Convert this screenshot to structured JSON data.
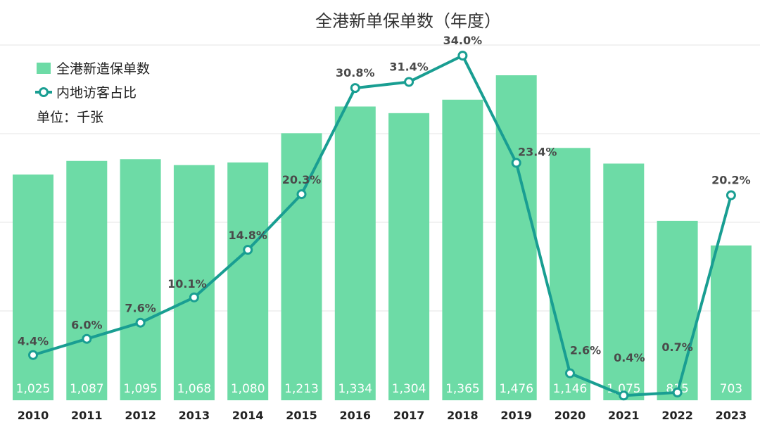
{
  "chart_data": {
    "type": "bar+line",
    "title": "全港新单保单数（年度）",
    "unit_note": "单位：千张",
    "categories": [
      "2010",
      "2011",
      "2012",
      "2013",
      "2014",
      "2015",
      "2016",
      "2017",
      "2018",
      "2019",
      "2020",
      "2021",
      "2022",
      "2023"
    ],
    "series": [
      {
        "name": "全港新造保单数",
        "type": "bar",
        "values": [
          1025,
          1087,
          1095,
          1068,
          1080,
          1213,
          1334,
          1304,
          1365,
          1476,
          1146,
          1075,
          815,
          703
        ],
        "labels": [
          "1,025",
          "1,087",
          "1,095",
          "1,068",
          "1,080",
          "1,213",
          "1,334",
          "1,304",
          "1,365",
          "1,476",
          "1,146",
          "1,075",
          "815",
          "703"
        ],
        "color": "#6ddba6"
      },
      {
        "name": "内地访客占比",
        "type": "line",
        "values": [
          4.4,
          6.0,
          7.6,
          10.1,
          14.8,
          20.3,
          30.8,
          31.4,
          34.0,
          23.4,
          2.6,
          0.4,
          0.7,
          20.2
        ],
        "labels": [
          "4.4%",
          "6.0%",
          "7.6%",
          "10.1%",
          "14.8%",
          "20.3%",
          "30.8%",
          "31.4%",
          "34.0%",
          "23.4%",
          "2.6%",
          "0.4%",
          "0.7%",
          "20.2%"
        ],
        "color": "#199e92"
      }
    ],
    "bar_axis_range": [
      0,
      1700
    ],
    "line_axis_range": [
      -1,
      36
    ],
    "grid": true,
    "legend_position": "top-left"
  }
}
